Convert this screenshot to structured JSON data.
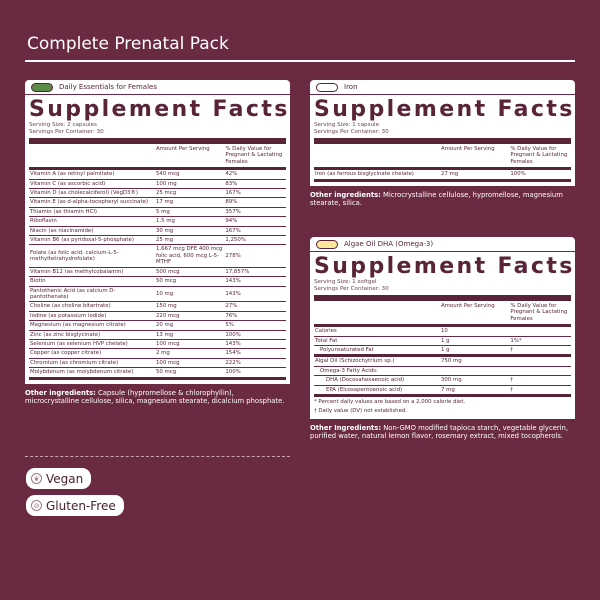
{
  "title": "Complete Prenatal Pack",
  "panels": [
    {
      "id": "essentials",
      "header": "Daily Essentials for Females",
      "pill_color": "#5e8a4a",
      "heading": "Supplement Facts",
      "serving_size": "Serving Size: 2 capsules",
      "servings": "Servings Per Container: 30",
      "col_amount": "Amount Per Serving",
      "col_dv": "% Daily Value for Pregnant & Lactating Females",
      "rows": [
        [
          "Vitamin A (as retinyl palmitate)",
          "540 mcg",
          "42%",
          0,
          0
        ],
        [
          "Vitamin C (as ascorbic acid)",
          "100 mg",
          "83%",
          0,
          0
        ],
        [
          "Vitamin D (as cholecalciferol) (VegD3®)",
          "25 mcg",
          "167%",
          0,
          0
        ],
        [
          "Vitamin E (as d-alpha-tocopheryl succinate)",
          "17 mg",
          "89%",
          0,
          0
        ],
        [
          "Thiamin (as thiamin HCl)",
          "5 mg",
          "357%",
          0,
          0
        ],
        [
          "Riboflavin",
          "1.5 mg",
          "94%",
          0,
          0
        ],
        [
          "Niacin (as niacinamide)",
          "30 mg",
          "167%",
          0,
          0
        ],
        [
          "Vitamin B6 (as pyridoxal-5-phosphate)",
          "25 mg",
          "1,250%",
          0,
          0
        ],
        [
          "Folate (as folic acid, calcium-L-5-methyltetrahydrofolate)",
          "1,667 mcg DFE 400 mcg folic acid, 600 mcg L-5-MTHF",
          "278%",
          0,
          0
        ],
        [
          "Vitamin B12 (as methylcobalamin)",
          "500 mcg",
          "17,857%",
          0,
          0
        ],
        [
          "Biotin",
          "50 mcg",
          "143%",
          0,
          0
        ],
        [
          "Pantothenic Acid (as calcium D-pantothenate)",
          "10 mg",
          "143%",
          0,
          0
        ],
        [
          "Choline (as choline bitartrate)",
          "150 mg",
          "27%",
          0,
          0
        ],
        [
          "Iodine (as potassium iodide)",
          "220 mcg",
          "76%",
          0,
          0
        ],
        [
          "Magnesium (as magnesium citrate)",
          "20 mg",
          "5%",
          0,
          0
        ],
        [
          "Zinc (as zinc bisglycinate)",
          "13 mg",
          "100%",
          0,
          0
        ],
        [
          "Selenium (as selenium HVP chelate)",
          "100 mcg",
          "143%",
          0,
          0
        ],
        [
          "Copper (as copper citrate)",
          "2 mg",
          "154%",
          0,
          0
        ],
        [
          "Chromium (as chromium citrate)",
          "100 mcg",
          "222%",
          0,
          0
        ],
        [
          "Molybdenum (as molybdenum citrate)",
          "50 mcg",
          "100%",
          0,
          1
        ]
      ],
      "footnotes": [],
      "other_label": "Other ingredients:",
      "other": " Capsule (hypromellose & chlorophyllin), microcrystalline cellulose, silica, magnesium stearate, dicalcium phosphate."
    },
    {
      "id": "iron",
      "header": "Iron",
      "pill_color": "#ffffff",
      "heading": "Supplement Facts",
      "serving_size": "Serving Size: 1 capsule",
      "servings": "Servings Per Container: 30",
      "col_amount": "Amount Per Serving",
      "col_dv": "% Daily Value for Pregnant & Lactating Females",
      "rows": [
        [
          "Iron (as ferrous bisglycinate chelate)",
          "27 mg",
          "100%",
          0,
          1
        ]
      ],
      "footnotes": [],
      "other_label": "Other ingredients:",
      "other": " Microcrystalline cellulose, hypromellose, magnesium stearate, silica."
    },
    {
      "id": "dha",
      "header": "Algae Oil DHA (Omega-3)",
      "pill_color": "#f7e89a",
      "heading": "Supplement Facts",
      "serving_size": "Serving Size: 1 softgel",
      "servings": "Servings Per Container: 30",
      "col_amount": "Amount Per Serving",
      "col_dv": "% Daily Value for Pregnant & Lactating Females",
      "rows": [
        [
          "Calories",
          "10",
          "",
          0,
          0
        ],
        [
          "Total Fat",
          "1 g",
          "1%*",
          0,
          0
        ],
        [
          "Polyunsaturated Fat",
          "1 g",
          "†",
          1,
          1
        ],
        [
          "Algal Oil (Schizochytrium sp.)",
          "750 mg",
          "",
          0,
          0
        ],
        [
          "Omega-3 Fatty Acids:",
          "",
          "",
          1,
          0
        ],
        [
          "DHA (Docosahexaenoic acid)",
          "300 mg",
          "†",
          2,
          0
        ],
        [
          "EPA (Eicosapentoenoic acid)",
          "7 mg",
          "†",
          2,
          1
        ]
      ],
      "footnotes": [
        "* Percent daily values are based on a 2,000 calorie diet.",
        "† Daily value (DV) not established."
      ],
      "other_label": "Other Ingredients:",
      "other": " Non-GMO modified tapioca starch, vegetable glycerin, purified water, natural lemon flavor, rosemary extract, mixed tocopherols."
    }
  ],
  "badges": [
    {
      "label": "Vegan",
      "icon": "leaf-icon"
    },
    {
      "label": "Gluten-Free",
      "icon": "wheat-free-icon"
    }
  ],
  "colors": {
    "background": "#6a2b42",
    "accent": "#5a2438"
  }
}
